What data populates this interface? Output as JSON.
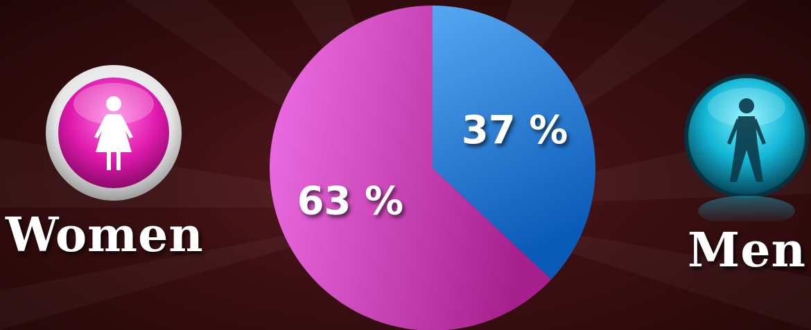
{
  "chart_data": {
    "type": "pie",
    "categories": [
      "Men",
      "Women"
    ],
    "values": [
      37,
      63
    ],
    "value_labels": [
      "37 %",
      "63 %"
    ],
    "colors": [
      "#2f7fdc",
      "#d858c8"
    ],
    "title": "",
    "legend": "sides"
  },
  "legend": {
    "women": {
      "label": "Women",
      "icon": "female-icon",
      "color": "#e020b0"
    },
    "men": {
      "label": "Men",
      "icon": "male-icon",
      "color": "#1ab8d8"
    }
  }
}
